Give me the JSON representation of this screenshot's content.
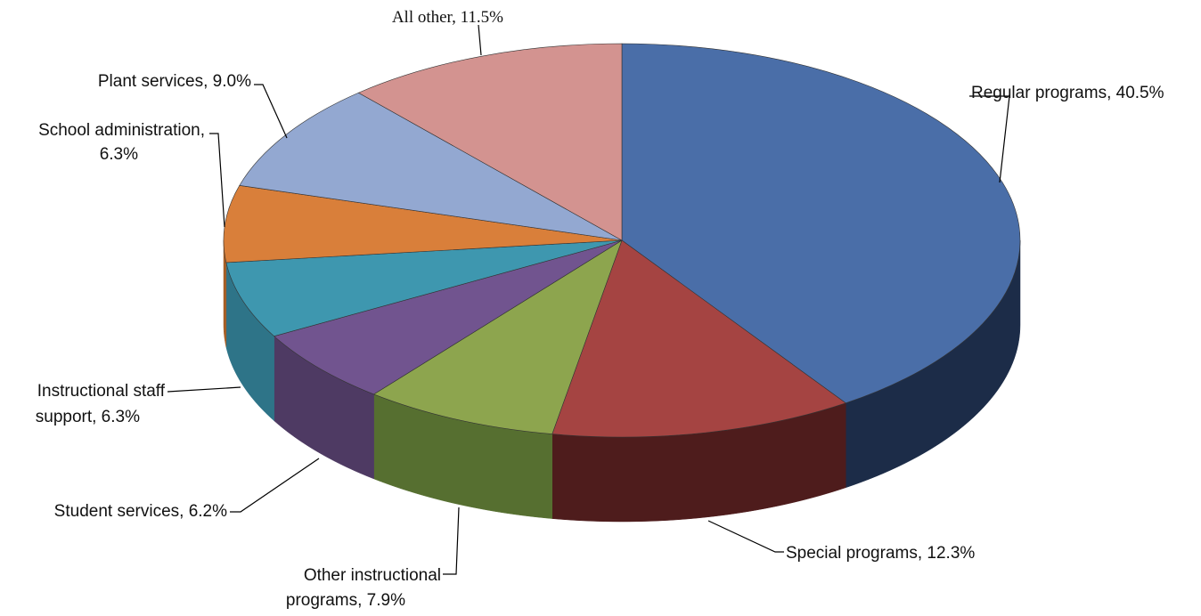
{
  "chart_data": {
    "type": "pie",
    "style": "3d-exploded-none",
    "title": "",
    "slices": [
      {
        "name": "Regular programs",
        "value": 40.5,
        "label_text": "Regular programs, 40.5%",
        "color": "#4A6EA8",
        "side_color": "#1C2C48"
      },
      {
        "name": "Special programs",
        "value": 12.3,
        "label_text": "Special programs, 12.3%",
        "color": "#A54442",
        "side_color": "#4E1C1C"
      },
      {
        "name": "Other instructional programs",
        "value": 7.9,
        "label_lines": [
          "Other instructional",
          "programs, 7.9%"
        ],
        "color": "#8DA54E",
        "side_color": "#566F30"
      },
      {
        "name": "Student services",
        "value": 6.2,
        "label_text": "Student services, 6.2%",
        "color": "#71548F",
        "side_color": "#4E3A63"
      },
      {
        "name": "Instructional staff support",
        "value": 6.3,
        "label_lines": [
          "Instructional staff",
          "support, 6.3%"
        ],
        "color": "#3E97AF",
        "side_color": "#2E7488"
      },
      {
        "name": "School administration",
        "value": 6.3,
        "label_lines": [
          "School administration,",
          "6.3%"
        ],
        "color": "#D97F3A",
        "side_color": "#A55E26"
      },
      {
        "name": "Plant services",
        "value": 9.0,
        "label_text": "Plant services, 9.0%",
        "color": "#93A8D1",
        "side_color": "#6E7EA0"
      },
      {
        "name": "All other",
        "value": 11.5,
        "label_text": "All other, 11.5%",
        "color": "#D39390",
        "side_color": "#A06E6C"
      }
    ]
  }
}
